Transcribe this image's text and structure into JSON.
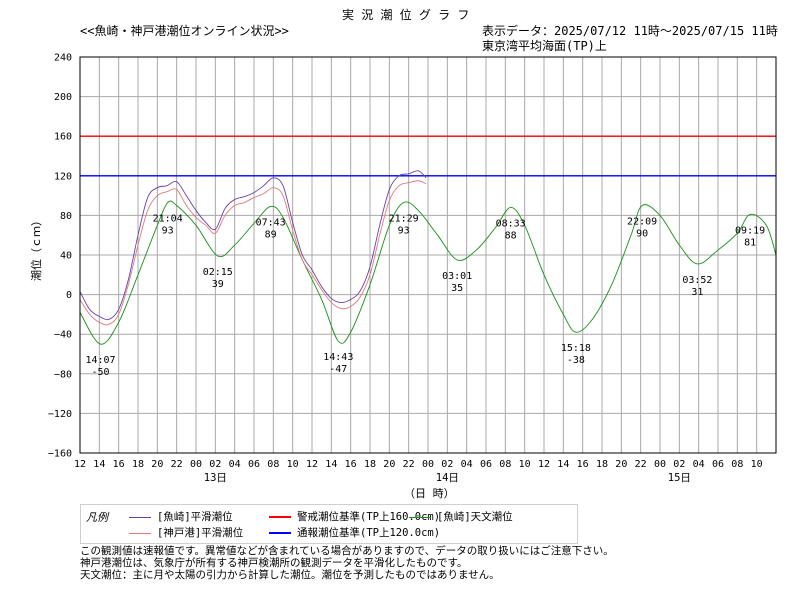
{
  "header": {
    "title": "実 況 潮 位 グ ラ フ",
    "subtitle": "<<魚崎・神戸港潮位オンライン状況>>",
    "range": "表示データ：2025/07/12 11時～2025/07/15 11時",
    "datum": "東京湾平均海面(TP)上"
  },
  "legend": {
    "title": "凡例",
    "items": [
      {
        "label": "[魚崎]平滑潮位",
        "color": "#6a3fa6"
      },
      {
        "label": "[神戸港]平滑潮位",
        "color": "#e07a7a"
      },
      {
        "label": "警戒潮位基準(TP上160.0cm)",
        "color": "#ff0000"
      },
      {
        "label": "通報潮位基準(TP上120.0cm)",
        "color": "#0000ff"
      },
      {
        "label": "[魚崎]天文潮位",
        "color": "#1a8f1a"
      }
    ]
  },
  "notes": [
    "この観測値は速報値です。異常値などが含まれている場合がありますので、データの取り扱いにはご注意下さい。",
    "神戸港潮位は、気象庁が所有する神戸検潮所の観測データを平滑化したものです。",
    "天文潮位：主に月や太陽の引力から計算した潮位。潮位を予測したものではありません。"
  ],
  "chart_data": {
    "type": "line",
    "ylabel": "潮位（ｃｍ）",
    "xlabel": "（日 時）",
    "ylim": [
      -160,
      240
    ],
    "yticks": [
      240,
      200,
      160,
      120,
      80,
      40,
      0,
      -40,
      -80,
      -120,
      -160
    ],
    "xlim_hours": [
      12,
      84
    ],
    "xtick_labels": [
      "12",
      "14",
      "16",
      "18",
      "20",
      "22",
      "00",
      "02",
      "04",
      "06",
      "08",
      "10",
      "12",
      "14",
      "16",
      "18",
      "20",
      "22",
      "00",
      "02",
      "04",
      "06",
      "08",
      "10",
      "12",
      "14",
      "16",
      "18",
      "20",
      "22",
      "00",
      "02",
      "04",
      "06",
      "08",
      "10"
    ],
    "day_labels": [
      {
        "hour": 26,
        "label": "13日"
      },
      {
        "hour": 50,
        "label": "14日"
      },
      {
        "hour": 74,
        "label": "15日"
      }
    ],
    "grid": true,
    "thresholds": [
      {
        "name": "警戒潮位基準(TP上160.0cm)",
        "value": 160,
        "color": "#ff0000"
      },
      {
        "name": "通報潮位基準(TP上120.0cm)",
        "value": 120,
        "color": "#0000ff"
      }
    ],
    "series": [
      {
        "name": "[魚崎]天文潮位",
        "color": "#1a8f1a",
        "points": [
          [
            12,
            -18
          ],
          [
            14.1,
            -50
          ],
          [
            16,
            -28
          ],
          [
            18,
            20
          ],
          [
            20,
            70
          ],
          [
            21.07,
            93
          ],
          [
            22,
            90
          ],
          [
            24,
            70
          ],
          [
            26.25,
            39
          ],
          [
            28,
            50
          ],
          [
            30,
            72
          ],
          [
            31.72,
            89
          ],
          [
            33,
            78
          ],
          [
            35,
            35
          ],
          [
            37,
            -5
          ],
          [
            38.72,
            -47
          ],
          [
            40,
            -38
          ],
          [
            42,
            10
          ],
          [
            44,
            70
          ],
          [
            45.48,
            93
          ],
          [
            47,
            85
          ],
          [
            49,
            60
          ],
          [
            51.02,
            35
          ],
          [
            53,
            45
          ],
          [
            55,
            68
          ],
          [
            56.55,
            88
          ],
          [
            58,
            70
          ],
          [
            60,
            20
          ],
          [
            62,
            -20
          ],
          [
            63.3,
            -38
          ],
          [
            65,
            -25
          ],
          [
            67,
            10
          ],
          [
            69,
            60
          ],
          [
            70.15,
            90
          ],
          [
            72,
            80
          ],
          [
            74,
            50
          ],
          [
            75.87,
            31
          ],
          [
            78,
            45
          ],
          [
            80,
            62
          ],
          [
            81.32,
            81
          ],
          [
            83,
            70
          ],
          [
            84,
            40
          ]
        ]
      },
      {
        "name": "[神戸港]平滑潮位",
        "color": "#e07a7a",
        "points": [
          [
            12,
            -5
          ],
          [
            13,
            -20
          ],
          [
            14,
            -28
          ],
          [
            15,
            -30
          ],
          [
            16,
            -20
          ],
          [
            17,
            10
          ],
          [
            18,
            50
          ],
          [
            19,
            85
          ],
          [
            20,
            100
          ],
          [
            21,
            104
          ],
          [
            22,
            106
          ],
          [
            23,
            90
          ],
          [
            24,
            78
          ],
          [
            25,
            70
          ],
          [
            26,
            62
          ],
          [
            27,
            80
          ],
          [
            28,
            90
          ],
          [
            29,
            93
          ],
          [
            30,
            98
          ],
          [
            31,
            102
          ],
          [
            32,
            108
          ],
          [
            33,
            100
          ],
          [
            34,
            65
          ],
          [
            35,
            35
          ],
          [
            36,
            20
          ],
          [
            37,
            5
          ],
          [
            38,
            -8
          ],
          [
            39,
            -14
          ],
          [
            40,
            -12
          ],
          [
            41,
            -2
          ],
          [
            42,
            20
          ],
          [
            43,
            60
          ],
          [
            44,
            95
          ],
          [
            45,
            110
          ],
          [
            46,
            113
          ],
          [
            47,
            115
          ],
          [
            47.8,
            112
          ]
        ]
      },
      {
        "name": "[魚崎]平滑潮位",
        "color": "#6a3fa6",
        "points": [
          [
            12,
            3
          ],
          [
            13,
            -15
          ],
          [
            14,
            -22
          ],
          [
            15,
            -25
          ],
          [
            16,
            -15
          ],
          [
            17,
            15
          ],
          [
            18,
            60
          ],
          [
            19,
            98
          ],
          [
            20,
            108
          ],
          [
            21,
            110
          ],
          [
            22,
            114
          ],
          [
            23,
            100
          ],
          [
            24,
            85
          ],
          [
            25,
            73
          ],
          [
            26,
            66
          ],
          [
            27,
            87
          ],
          [
            28,
            96
          ],
          [
            29,
            99
          ],
          [
            30,
            103
          ],
          [
            31,
            110
          ],
          [
            32,
            118
          ],
          [
            33,
            110
          ],
          [
            34,
            73
          ],
          [
            35,
            40
          ],
          [
            36,
            25
          ],
          [
            37,
            8
          ],
          [
            38,
            -4
          ],
          [
            39,
            -8
          ],
          [
            40,
            -5
          ],
          [
            41,
            4
          ],
          [
            42,
            28
          ],
          [
            43,
            70
          ],
          [
            44,
            106
          ],
          [
            45,
            120
          ],
          [
            46,
            122
          ],
          [
            47,
            125
          ],
          [
            47.8,
            118
          ]
        ]
      }
    ],
    "annotations": [
      {
        "time": "14:07",
        "value": "-50",
        "hour": 14.12,
        "y": -50,
        "pos": "below"
      },
      {
        "time": "21:04",
        "value": "93",
        "hour": 21.07,
        "y": 93,
        "pos": "below"
      },
      {
        "time": "02:15",
        "value": "39",
        "hour": 26.25,
        "y": 39,
        "pos": "below"
      },
      {
        "time": "07:43",
        "value": "89",
        "hour": 31.72,
        "y": 89,
        "pos": "below"
      },
      {
        "time": "14:43",
        "value": "-47",
        "hour": 38.72,
        "y": -47,
        "pos": "below"
      },
      {
        "time": "21:29",
        "value": "93",
        "hour": 45.48,
        "y": 93,
        "pos": "below"
      },
      {
        "time": "03:01",
        "value": "35",
        "hour": 51.02,
        "y": 35,
        "pos": "below"
      },
      {
        "time": "08:33",
        "value": "88",
        "hour": 56.55,
        "y": 88,
        "pos": "below"
      },
      {
        "time": "15:18",
        "value": "-38",
        "hour": 63.3,
        "y": -38,
        "pos": "below"
      },
      {
        "time": "22:09",
        "value": "90",
        "hour": 70.15,
        "y": 90,
        "pos": "below"
      },
      {
        "time": "03:52",
        "value": "31",
        "hour": 75.87,
        "y": 31,
        "pos": "below"
      },
      {
        "time": "09:19",
        "value": "81",
        "hour": 81.32,
        "y": 81,
        "pos": "below"
      }
    ]
  }
}
